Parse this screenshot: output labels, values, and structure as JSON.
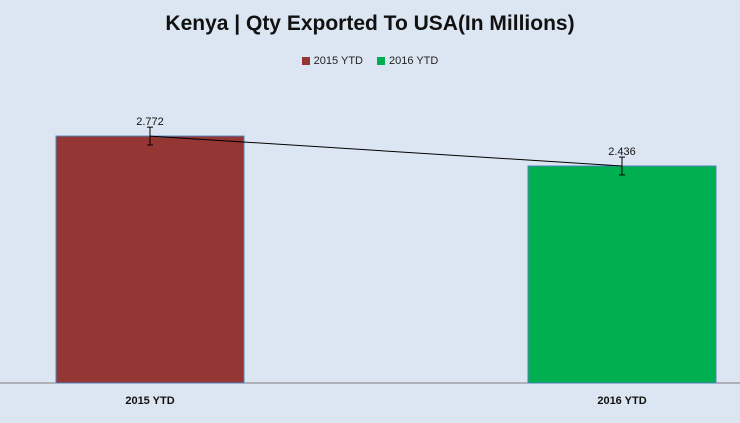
{
  "chart_data": {
    "type": "bar",
    "title": "Kenya |  Qty Exported To USA(In Millions)",
    "categories": [
      "2015 YTD",
      "2016 YTD"
    ],
    "values": [
      2.772,
      2.436
    ],
    "data_labels": [
      "2.772",
      "2.436"
    ],
    "colors": [
      "#943634",
      "#00b050"
    ],
    "legend": {
      "position": "top",
      "entries": [
        {
          "label": "2015 YTD",
          "color": "#943634"
        },
        {
          "label": "2016 YTD",
          "color": "#00b050"
        }
      ]
    },
    "ylim": [
      0,
      3.48
    ],
    "error_bar": 0.2,
    "trendline": true,
    "grid": false,
    "xlabel": "",
    "ylabel": ""
  }
}
